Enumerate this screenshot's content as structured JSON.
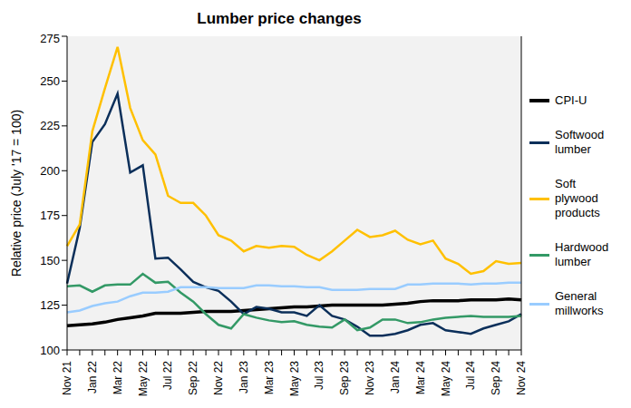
{
  "chart_data": {
    "type": "line",
    "title": "Lumber price changes",
    "y_label": "Relative price (July '17 = 100)",
    "categories": [
      "Nov 21",
      null,
      "Jan 22",
      null,
      "Mar 22",
      null,
      "May 22",
      null,
      "Jul 22",
      null,
      "Sep 22",
      null,
      "Nov 22",
      null,
      "Jan 23",
      null,
      "Mar 23",
      null,
      "May 23",
      null,
      "Jul 23",
      null,
      "Sep 23",
      null,
      "Nov 23",
      null,
      "Jan 24",
      null,
      "Mar 24",
      null,
      "May 24",
      null,
      "Jul 24",
      null,
      "Sep 24",
      null,
      "Nov 24"
    ],
    "series": [
      {
        "name": "CPI-U",
        "color": "#000000",
        "values": [
          113.5,
          114,
          114.5,
          115.5,
          117,
          118,
          119,
          120.5,
          120.5,
          120.5,
          121,
          121.5,
          121.5,
          121.5,
          122,
          122.5,
          123,
          123.5,
          124,
          124,
          124.5,
          125,
          125,
          125,
          125,
          125,
          125.5,
          126,
          127,
          127.5,
          127.5,
          127.5,
          128,
          128,
          128,
          128.5,
          128
        ]
      },
      {
        "name": "Softwood lumber",
        "color": "#0b2f5a",
        "values": [
          137,
          168,
          216,
          226,
          243,
          199,
          203,
          151,
          151.5,
          145,
          138,
          135,
          133,
          127,
          120,
          124,
          123,
          121,
          121,
          119,
          125,
          119,
          117,
          113,
          108,
          108,
          109,
          111,
          114,
          115,
          111,
          110,
          109,
          112,
          114,
          116,
          120
        ]
      },
      {
        "name": "Soft plywood products",
        "color": "#ffc000",
        "values": [
          158,
          170,
          222,
          246,
          269,
          235,
          217,
          209,
          186,
          182,
          182,
          175,
          164,
          161,
          155,
          158,
          157,
          158,
          157.5,
          153,
          150,
          155,
          161,
          167,
          163,
          164,
          166.5,
          161.5,
          159,
          161,
          151,
          148,
          142.5,
          144,
          149.5,
          148,
          148.5
        ]
      },
      {
        "name": "Hardwood lumber",
        "color": "#339966",
        "values": [
          135.5,
          136,
          132.5,
          136,
          136.5,
          136.5,
          142.5,
          137.5,
          138,
          132,
          127,
          120,
          114,
          112,
          120,
          118,
          116.5,
          115.5,
          116,
          114,
          113,
          112.5,
          117,
          111,
          112.5,
          117,
          117,
          115,
          115.5,
          117,
          118,
          118.5,
          119,
          118.5,
          118.5,
          118.5,
          119
        ]
      },
      {
        "name": "General millworks",
        "color": "#99ccff",
        "values": [
          121,
          122,
          124.5,
          126,
          127,
          130,
          132,
          132,
          132.5,
          135,
          135,
          135,
          134.5,
          134.5,
          134.5,
          136,
          136,
          135.5,
          135.5,
          135,
          135,
          133.5,
          133.5,
          133.5,
          134,
          134,
          134,
          136.5,
          136.5,
          137,
          137,
          137,
          136.5,
          137,
          137,
          137.5,
          137.5
        ]
      }
    ],
    "ylim": [
      100,
      275
    ],
    "yticks": [
      100,
      125,
      150,
      175,
      200,
      225,
      250,
      275
    ],
    "grid": false,
    "legend": "right"
  }
}
